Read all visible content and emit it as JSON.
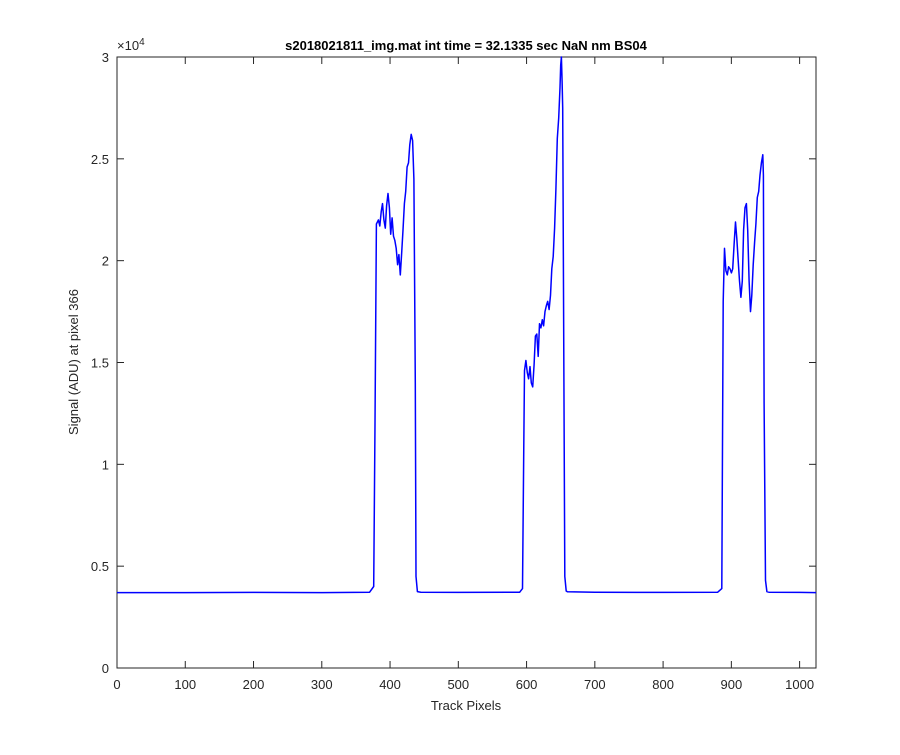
{
  "chart_data": {
    "type": "line",
    "title": "s2018021811_img.mat int time = 32.1335 sec  NaN nm BS04",
    "xlabel": "Track Pixels",
    "ylabel": "Signal (ADU) at pixel 366",
    "xlim": [
      0,
      1024
    ],
    "ylim": [
      0,
      30000
    ],
    "exponent_label": "×10",
    "exponent_power": "4",
    "x_ticks": [
      0,
      100,
      200,
      300,
      400,
      500,
      600,
      700,
      800,
      900,
      1000
    ],
    "x_tick_labels": [
      "0",
      "100",
      "200",
      "300",
      "400",
      "500",
      "600",
      "700",
      "800",
      "900",
      "1000"
    ],
    "y_ticks": [
      0,
      5000,
      10000,
      15000,
      20000,
      25000,
      30000
    ],
    "y_tick_labels": [
      "0",
      "0.5",
      "1",
      "1.5",
      "2",
      "2.5",
      "3"
    ],
    "grid": false,
    "series": [
      {
        "color": "#0000ff",
        "x": [
          0,
          100,
          200,
          300,
          370,
          376,
          378,
          380,
          383,
          385,
          387,
          389,
          391,
          393,
          395,
          397,
          399,
          401,
          403,
          405,
          407,
          409,
          411,
          413,
          415,
          417,
          419,
          421,
          423,
          425,
          427,
          429,
          431,
          433,
          435,
          437,
          438,
          440,
          445,
          500,
          590,
          594,
          596,
          597,
          599,
          601,
          603,
          605,
          607,
          609,
          611,
          613,
          615,
          617,
          619,
          621,
          623,
          625,
          627,
          629,
          631,
          633,
          635,
          637,
          639,
          641,
          643,
          645,
          647,
          649,
          650,
          651,
          652,
          653,
          655,
          656,
          658,
          660,
          700,
          800,
          880,
          886,
          888,
          890,
          892,
          894,
          896,
          898,
          900,
          902,
          904,
          906,
          908,
          910,
          912,
          914,
          916,
          918,
          920,
          922,
          924,
          926,
          928,
          930,
          932,
          934,
          936,
          938,
          940,
          942,
          944,
          946,
          947,
          948,
          950,
          952,
          955,
          1000,
          1024
        ],
        "y": [
          3700,
          3700,
          3710,
          3700,
          3720,
          4000,
          12000,
          21800,
          22000,
          21700,
          22400,
          22800,
          22000,
          21600,
          22700,
          23300,
          22600,
          21300,
          22100,
          21200,
          21000,
          20600,
          19800,
          20300,
          19300,
          20400,
          21500,
          22800,
          23400,
          24600,
          24800,
          25700,
          26200,
          25900,
          24000,
          14000,
          4500,
          3750,
          3720,
          3710,
          3720,
          3900,
          11000,
          14600,
          15100,
          14500,
          14200,
          14800,
          14000,
          13800,
          14900,
          16300,
          16400,
          15300,
          16900,
          16700,
          17100,
          16800,
          17500,
          17800,
          18000,
          17600,
          18300,
          19600,
          20200,
          21600,
          23500,
          26000,
          27000,
          28500,
          29600,
          30000,
          28800,
          27500,
          12000,
          4500,
          3780,
          3740,
          3720,
          3710,
          3720,
          3900,
          18000,
          20600,
          19500,
          19300,
          19700,
          19600,
          19400,
          19600,
          20800,
          21900,
          21100,
          20000,
          19000,
          18200,
          19000,
          21500,
          22600,
          22800,
          21500,
          19000,
          17500,
          18300,
          19800,
          20900,
          21800,
          23100,
          23400,
          24200,
          24800,
          25200,
          24200,
          13000,
          4300,
          3750,
          3720,
          3710,
          3700
        ]
      }
    ]
  }
}
